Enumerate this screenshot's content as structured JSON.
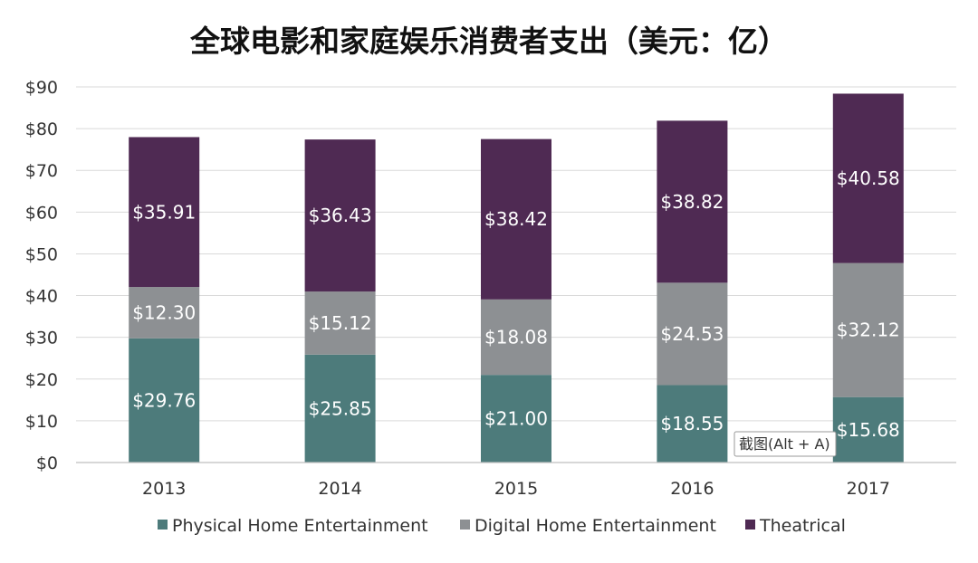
{
  "chart_data": {
    "type": "bar",
    "stacked": true,
    "title": "全球电影和家庭娱乐消费者支出（美元：亿）",
    "xlabel": "",
    "ylabel": "",
    "categories": [
      "2013",
      "2014",
      "2015",
      "2016",
      "2017"
    ],
    "series": [
      {
        "name": "Physical Home Entertainment",
        "color": "#4d7b7b",
        "values": [
          29.76,
          25.85,
          21.0,
          18.55,
          15.68
        ],
        "labels": [
          "$29.76",
          "$25.85",
          "$21.00",
          "$18.55",
          "$15.68"
        ]
      },
      {
        "name": "Digital Home Entertainment",
        "color": "#8d9093",
        "values": [
          12.3,
          15.12,
          18.08,
          24.53,
          32.12
        ],
        "labels": [
          "$12.30",
          "$15.12",
          "$18.08",
          "$24.53",
          "$32.12"
        ]
      },
      {
        "name": "Theatrical",
        "color": "#4f2a53",
        "values": [
          35.91,
          36.43,
          38.42,
          38.82,
          40.58
        ],
        "labels": [
          "$35.91",
          "$36.43",
          "$38.42",
          "$38.82",
          "$40.58"
        ]
      }
    ],
    "ylim": [
      0,
      90
    ],
    "yticks": [
      0,
      10,
      20,
      30,
      40,
      50,
      60,
      70,
      80,
      90
    ],
    "ytick_labels": [
      "$0",
      "$10",
      "$20",
      "$30",
      "$40",
      "$50",
      "$60",
      "$70",
      "$80",
      "$90"
    ],
    "grid": true,
    "legend_position": "bottom-center"
  },
  "tooltip": {
    "text": "截图(Alt + A)"
  }
}
